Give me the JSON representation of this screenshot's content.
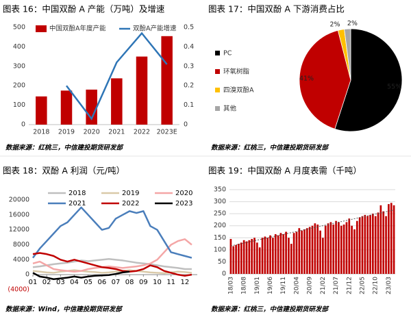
{
  "chart_data": [
    {
      "type": "bar",
      "title": "图表 16：中国双酚 A 产能（万吨）及增速",
      "source": "数据来源：红桃三，中信建投期货研发部",
      "categories": [
        "2018",
        "2019",
        "2020",
        "2021",
        "2022",
        "2023E"
      ],
      "series": [
        {
          "name": "中国双酚A年度产能",
          "color": "#c00000",
          "values": [
            145,
            175,
            180,
            238,
            350,
            455
          ]
        },
        {
          "name": "双酚A产能增速",
          "color": "#2e75b6",
          "type": "line",
          "axis": "y2",
          "values": [
            null,
            0.2,
            0.03,
            0.32,
            0.47,
            0.31
          ]
        }
      ],
      "ylim": [
        0,
        500
      ],
      "yticks": [
        0,
        100,
        200,
        300,
        400,
        500
      ],
      "y2lim": [
        0,
        0.5
      ],
      "y2ticks": [
        0,
        0.1,
        0.2,
        0.3,
        0.4,
        0.5
      ],
      "grid": false
    },
    {
      "type": "pie",
      "title": "图表 17：中国双酚 A 下游消费占比",
      "source": "数据来源：红桃三，中信建投期货研发部",
      "categories": [
        "PC",
        "环氧树脂",
        "四溴双酚A",
        "其他"
      ],
      "values": [
        55,
        41,
        2,
        2
      ],
      "value_labels": [
        "55%",
        "41%",
        "2%",
        "2%"
      ],
      "colors": [
        "#000000",
        "#c00000",
        "#ffc000",
        "#a6a6a6"
      ]
    },
    {
      "type": "line",
      "title": "图表 18：双酚 A 利润（元/吨）",
      "source": "数据来源：Wind，中信建投期货研发部",
      "x": [
        1,
        1.5,
        2,
        2.5,
        3,
        3.5,
        4,
        4.5,
        5,
        5.5,
        6,
        6.5,
        7,
        7.5,
        8,
        8.5,
        9,
        9.5,
        10,
        10.5,
        11,
        11.5,
        12,
        12.5
      ],
      "xlim": [
        1,
        12.9
      ],
      "xticks": [
        {
          "value": 1,
          "label": "01"
        },
        {
          "value": 2,
          "label": "02"
        },
        {
          "value": 3,
          "label": "03"
        },
        {
          "value": 4,
          "label": "04"
        },
        {
          "value": 5,
          "label": "05"
        },
        {
          "value": 6,
          "label": "06"
        },
        {
          "value": 7,
          "label": "07"
        },
        {
          "value": 8,
          "label": "08"
        },
        {
          "value": 9,
          "label": "09"
        },
        {
          "value": 10,
          "label": "10"
        },
        {
          "value": 11,
          "label": "11"
        },
        {
          "value": 12,
          "label": "12"
        }
      ],
      "ylim": [
        -4000,
        20000
      ],
      "yticks": [
        {
          "value": -4000,
          "label": "(4000)"
        },
        0,
        4000,
        8000,
        12000,
        16000,
        20000
      ],
      "grid": false,
      "series": [
        {
          "name": "2018",
          "color": "#bfbfbf",
          "values": [
            2000,
            2200,
            2500,
            2800,
            3000,
            3200,
            3500,
            3800,
            3600,
            3800,
            4000,
            4200,
            4000,
            3800,
            3500,
            3200,
            3000,
            2800,
            2500,
            2200,
            2000,
            1800,
            1500,
            1500
          ]
        },
        {
          "name": "2019",
          "color": "#d9c9a8",
          "values": [
            1000,
            800,
            600,
            500,
            800,
            1000,
            1200,
            1000,
            800,
            700,
            500,
            600,
            800,
            1000,
            1200,
            1000,
            800,
            600,
            500,
            400,
            600,
            800,
            700,
            500
          ]
        },
        {
          "name": "2020",
          "color": "#f4a6a6",
          "values": [
            3000,
            3500,
            2500,
            1500,
            1200,
            1000,
            800,
            1000,
            1500,
            1800,
            2000,
            2200,
            2000,
            1800,
            2000,
            2200,
            2500,
            3000,
            4000,
            6000,
            8000,
            9000,
            9500,
            8000
          ]
        },
        {
          "name": "2021",
          "color": "#4a7ebb",
          "values": [
            4500,
            7000,
            9000,
            11000,
            13000,
            14000,
            16000,
            18000,
            16000,
            14000,
            12000,
            12500,
            15000,
            16000,
            17000,
            16500,
            17000,
            13000,
            12000,
            9000,
            6000,
            5500,
            5000,
            4500
          ]
        },
        {
          "name": "2022",
          "color": "#c00000",
          "values": [
            5500,
            5800,
            5500,
            5000,
            4000,
            3500,
            4000,
            3500,
            3000,
            2500,
            2000,
            1800,
            1500,
            1000,
            800,
            1000,
            1500,
            2500,
            2000,
            1000,
            500,
            0,
            -300,
            0
          ]
        },
        {
          "name": "2023",
          "color": "#000000",
          "values": [
            500,
            -500,
            -800,
            -1200,
            -1000,
            -800,
            -500,
            -800,
            -500,
            -300,
            -200,
            -100,
            200,
            600,
            800,
            null,
            null,
            null,
            null,
            null,
            null,
            null,
            null,
            null
          ]
        }
      ]
    },
    {
      "type": "bar",
      "title": "图表 19：中国双酚 A 月度表需（千吨）",
      "source": "数据来源：红桃三，中信建投期货研发部",
      "categories": [
        "18/03",
        null,
        null,
        null,
        null,
        "18/08",
        null,
        null,
        null,
        null,
        "19/01",
        null,
        null,
        null,
        null,
        "19/06",
        null,
        null,
        null,
        null,
        "19/11",
        null,
        null,
        null,
        null,
        "20/04",
        null,
        null,
        null,
        null,
        "20/09",
        null,
        null,
        null,
        null,
        "21/02",
        null,
        null,
        null,
        null,
        "21/07",
        null,
        null,
        null,
        null,
        "21/12",
        null,
        null,
        null,
        null,
        "22/05",
        null,
        null,
        null,
        null,
        "22/10",
        null,
        null,
        null,
        null,
        "23/03",
        null,
        null
      ],
      "values": [
        145,
        115,
        120,
        125,
        130,
        140,
        135,
        140,
        145,
        150,
        130,
        110,
        150,
        155,
        150,
        160,
        150,
        165,
        160,
        170,
        165,
        175,
        150,
        125,
        170,
        175,
        190,
        180,
        185,
        190,
        195,
        200,
        210,
        205,
        180,
        150,
        200,
        210,
        215,
        205,
        220,
        215,
        200,
        205,
        215,
        230,
        200,
        185,
        220,
        235,
        240,
        245,
        240,
        245,
        250,
        240,
        255,
        285,
        260,
        240,
        290,
        295,
        285
      ],
      "color": "#c00000",
      "ylim": [
        0,
        350
      ],
      "yticks": [
        0,
        50,
        100,
        150,
        200,
        250,
        300,
        350
      ],
      "grid": true,
      "trendline": true
    }
  ]
}
